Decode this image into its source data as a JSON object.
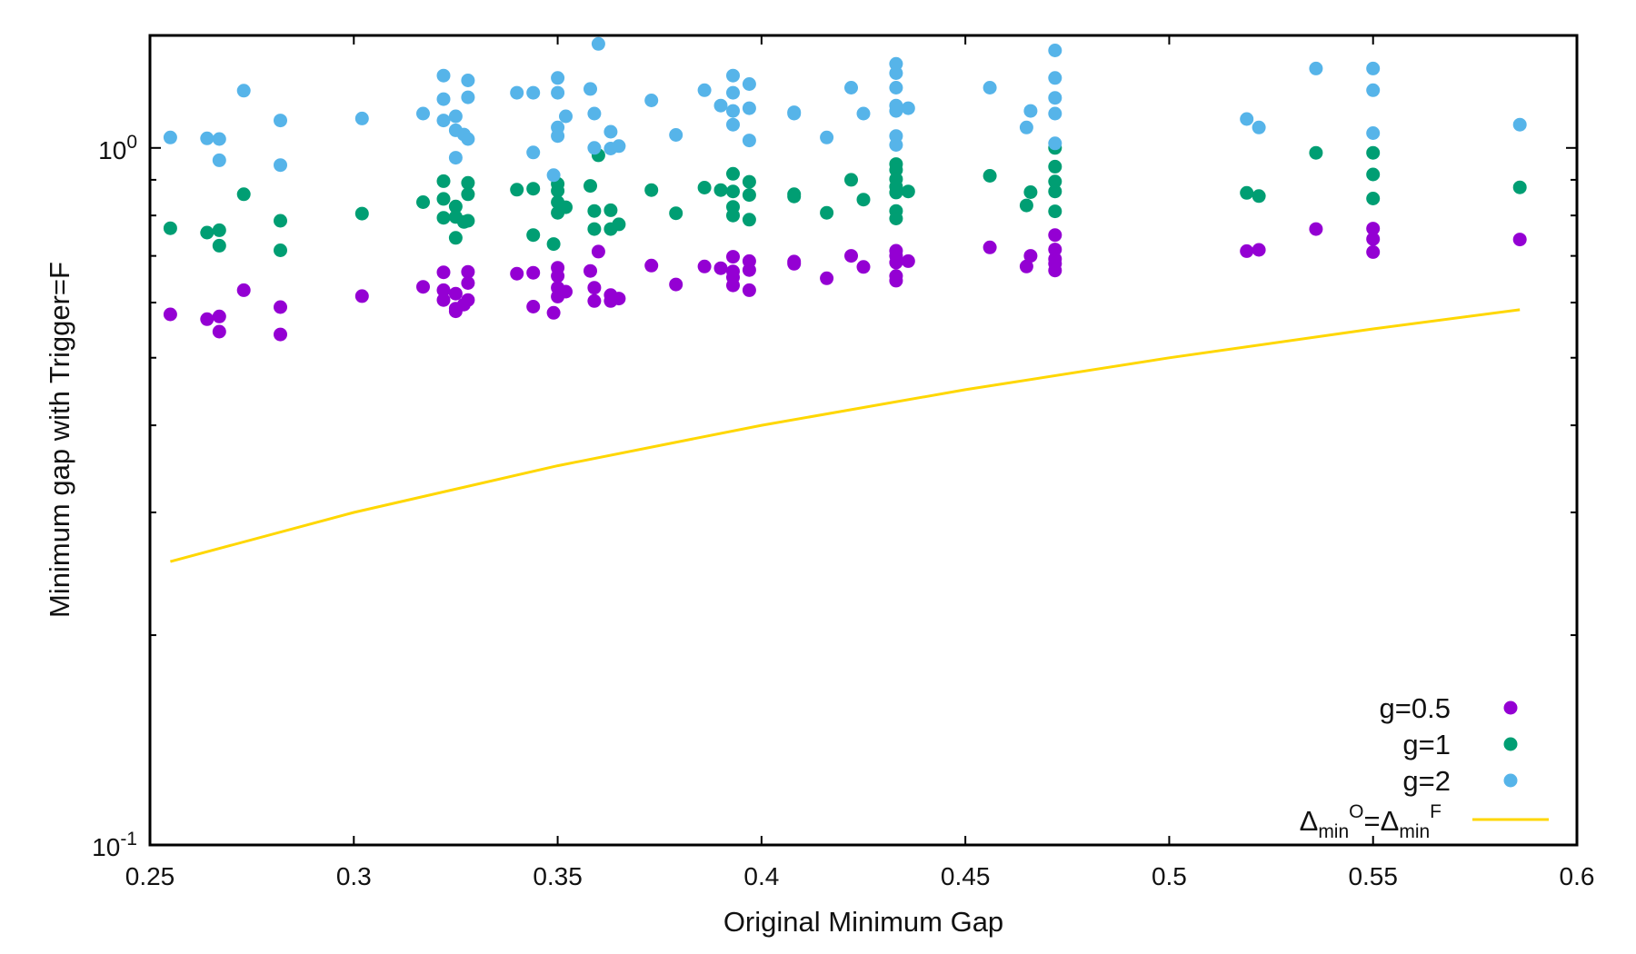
{
  "chart_data": {
    "type": "scatter",
    "xlabel": "Original Minimum Gap",
    "ylabel": "Minimum gap with Trigger=F",
    "xlim": [
      0.25,
      0.6
    ],
    "ylim": [
      0.1,
      1.45
    ],
    "y_scale": "log",
    "grid": false,
    "legend_position": "bottom-right",
    "x_ticks": [
      "0.25",
      "0.3",
      "0.35",
      "0.4",
      "0.45",
      "0.5",
      "0.55",
      "0.6"
    ],
    "y_tick_labels": {
      "top": {
        "base": "10",
        "exp": "0"
      },
      "bottom": {
        "base": "10",
        "exp": "-1"
      }
    },
    "series": [
      {
        "name": "g=0.5",
        "color": "#9400d3",
        "points": [
          [
            0.255,
            0.577
          ],
          [
            0.264,
            0.568
          ],
          [
            0.267,
            0.573
          ],
          [
            0.267,
            0.545
          ],
          [
            0.273,
            0.625
          ],
          [
            0.282,
            0.591
          ],
          [
            0.282,
            0.54
          ],
          [
            0.302,
            0.613
          ],
          [
            0.317,
            0.632
          ],
          [
            0.322,
            0.663
          ],
          [
            0.322,
            0.625
          ],
          [
            0.322,
            0.605
          ],
          [
            0.325,
            0.618
          ],
          [
            0.325,
            0.583
          ],
          [
            0.325,
            0.588
          ],
          [
            0.327,
            0.596
          ],
          [
            0.328,
            0.664
          ],
          [
            0.328,
            0.64
          ],
          [
            0.328,
            0.605
          ],
          [
            0.34,
            0.66
          ],
          [
            0.344,
            0.662
          ],
          [
            0.344,
            0.592
          ],
          [
            0.35,
            0.673
          ],
          [
            0.35,
            0.655
          ],
          [
            0.35,
            0.63
          ],
          [
            0.35,
            0.612
          ],
          [
            0.349,
            0.58
          ],
          [
            0.352,
            0.622
          ],
          [
            0.358,
            0.666
          ],
          [
            0.359,
            0.63
          ],
          [
            0.359,
            0.603
          ],
          [
            0.36,
            0.71
          ],
          [
            0.363,
            0.615
          ],
          [
            0.363,
            0.603
          ],
          [
            0.365,
            0.608
          ],
          [
            0.373,
            0.678
          ],
          [
            0.379,
            0.637
          ],
          [
            0.386,
            0.676
          ],
          [
            0.39,
            0.672
          ],
          [
            0.393,
            0.698
          ],
          [
            0.393,
            0.665
          ],
          [
            0.393,
            0.652
          ],
          [
            0.393,
            0.635
          ],
          [
            0.397,
            0.688
          ],
          [
            0.397,
            0.668
          ],
          [
            0.397,
            0.625
          ],
          [
            0.408,
            0.687
          ],
          [
            0.408,
            0.682
          ],
          [
            0.416,
            0.65
          ],
          [
            0.422,
            0.7
          ],
          [
            0.425,
            0.675
          ],
          [
            0.433,
            0.712
          ],
          [
            0.433,
            0.7
          ],
          [
            0.433,
            0.685
          ],
          [
            0.433,
            0.655
          ],
          [
            0.433,
            0.645
          ],
          [
            0.436,
            0.688
          ],
          [
            0.456,
            0.72
          ],
          [
            0.465,
            0.676
          ],
          [
            0.466,
            0.7
          ],
          [
            0.472,
            0.75
          ],
          [
            0.472,
            0.715
          ],
          [
            0.472,
            0.693
          ],
          [
            0.472,
            0.682
          ],
          [
            0.472,
            0.667
          ],
          [
            0.519,
            0.711
          ],
          [
            0.522,
            0.714
          ],
          [
            0.536,
            0.765
          ],
          [
            0.55,
            0.766
          ],
          [
            0.55,
            0.74
          ],
          [
            0.55,
            0.709
          ],
          [
            0.586,
            0.739
          ]
        ]
      },
      {
        "name": "g=1",
        "color": "#009e73",
        "points": [
          [
            0.255,
            0.767
          ],
          [
            0.264,
            0.756
          ],
          [
            0.267,
            0.762
          ],
          [
            0.267,
            0.724
          ],
          [
            0.273,
            0.858
          ],
          [
            0.282,
            0.786
          ],
          [
            0.282,
            0.713
          ],
          [
            0.302,
            0.805
          ],
          [
            0.317,
            0.836
          ],
          [
            0.322,
            0.896
          ],
          [
            0.322,
            0.845
          ],
          [
            0.322,
            0.794
          ],
          [
            0.325,
            0.824
          ],
          [
            0.325,
            0.796
          ],
          [
            0.325,
            0.743
          ],
          [
            0.327,
            0.783
          ],
          [
            0.328,
            0.891
          ],
          [
            0.328,
            0.858
          ],
          [
            0.328,
            0.786
          ],
          [
            0.34,
            0.871
          ],
          [
            0.344,
            0.874
          ],
          [
            0.344,
            0.75
          ],
          [
            0.35,
            0.888
          ],
          [
            0.35,
            0.868
          ],
          [
            0.35,
            0.836
          ],
          [
            0.35,
            0.807
          ],
          [
            0.349,
            0.728
          ],
          [
            0.352,
            0.822
          ],
          [
            0.358,
            0.882
          ],
          [
            0.359,
            0.812
          ],
          [
            0.359,
            0.765
          ],
          [
            0.36,
            0.976
          ],
          [
            0.363,
            0.814
          ],
          [
            0.363,
            0.765
          ],
          [
            0.365,
            0.777
          ],
          [
            0.373,
            0.87
          ],
          [
            0.379,
            0.806
          ],
          [
            0.386,
            0.877
          ],
          [
            0.39,
            0.87
          ],
          [
            0.393,
            0.918
          ],
          [
            0.393,
            0.866
          ],
          [
            0.393,
            0.823
          ],
          [
            0.393,
            0.8
          ],
          [
            0.397,
            0.894
          ],
          [
            0.397,
            0.856
          ],
          [
            0.397,
            0.789
          ],
          [
            0.408,
            0.858
          ],
          [
            0.408,
            0.852
          ],
          [
            0.416,
            0.807
          ],
          [
            0.422,
            0.9
          ],
          [
            0.425,
            0.843
          ],
          [
            0.433,
            0.948
          ],
          [
            0.433,
            0.93
          ],
          [
            0.433,
            0.902
          ],
          [
            0.433,
            0.88
          ],
          [
            0.433,
            0.863
          ],
          [
            0.433,
            0.812
          ],
          [
            0.433,
            0.792
          ],
          [
            0.436,
            0.866
          ],
          [
            0.456,
            0.912
          ],
          [
            0.465,
            0.827
          ],
          [
            0.466,
            0.864
          ],
          [
            0.472,
            1.0
          ],
          [
            0.472,
            0.94
          ],
          [
            0.472,
            0.895
          ],
          [
            0.472,
            0.866
          ],
          [
            0.472,
            0.811
          ],
          [
            0.519,
            0.862
          ],
          [
            0.522,
            0.853
          ],
          [
            0.536,
            0.984
          ],
          [
            0.55,
            0.984
          ],
          [
            0.55,
            0.916
          ],
          [
            0.55,
            0.846
          ],
          [
            0.586,
            0.878
          ]
        ]
      },
      {
        "name": "g=2",
        "color": "#56b4e9",
        "points": [
          [
            0.255,
            1.035
          ],
          [
            0.264,
            1.032
          ],
          [
            0.267,
            1.03
          ],
          [
            0.267,
            0.96
          ],
          [
            0.273,
            1.208
          ],
          [
            0.282,
            1.095
          ],
          [
            0.282,
            0.945
          ],
          [
            0.302,
            1.102
          ],
          [
            0.317,
            1.12
          ],
          [
            0.322,
            1.27
          ],
          [
            0.322,
            1.175
          ],
          [
            0.322,
            1.095
          ],
          [
            0.325,
            1.11
          ],
          [
            0.325,
            1.06
          ],
          [
            0.325,
            0.968
          ],
          [
            0.327,
            1.045
          ],
          [
            0.328,
            1.25
          ],
          [
            0.328,
            1.182
          ],
          [
            0.328,
            1.03
          ],
          [
            0.34,
            1.2
          ],
          [
            0.344,
            1.2
          ],
          [
            0.344,
            0.985
          ],
          [
            0.35,
            1.26
          ],
          [
            0.35,
            1.2
          ],
          [
            0.35,
            1.07
          ],
          [
            0.35,
            1.04
          ],
          [
            0.349,
            0.914
          ],
          [
            0.352,
            1.11
          ],
          [
            0.358,
            1.215
          ],
          [
            0.359,
            1.12
          ],
          [
            0.359,
            1.0
          ],
          [
            0.36,
            1.41
          ],
          [
            0.363,
            1.055
          ],
          [
            0.363,
            0.998
          ],
          [
            0.365,
            1.006
          ],
          [
            0.373,
            1.17
          ],
          [
            0.379,
            1.044
          ],
          [
            0.386,
            1.21
          ],
          [
            0.39,
            1.15
          ],
          [
            0.393,
            1.27
          ],
          [
            0.393,
            1.2
          ],
          [
            0.393,
            1.13
          ],
          [
            0.393,
            1.08
          ],
          [
            0.397,
            1.235
          ],
          [
            0.397,
            1.14
          ],
          [
            0.397,
            1.025
          ],
          [
            0.408,
            1.125
          ],
          [
            0.408,
            1.12
          ],
          [
            0.416,
            1.035
          ],
          [
            0.422,
            1.22
          ],
          [
            0.425,
            1.12
          ],
          [
            0.433,
            1.32
          ],
          [
            0.433,
            1.28
          ],
          [
            0.433,
            1.22
          ],
          [
            0.433,
            1.15
          ],
          [
            0.433,
            1.13
          ],
          [
            0.433,
            1.04
          ],
          [
            0.433,
            1.01
          ],
          [
            0.436,
            1.14
          ],
          [
            0.456,
            1.22
          ],
          [
            0.465,
            1.07
          ],
          [
            0.466,
            1.13
          ],
          [
            0.472,
            1.38
          ],
          [
            0.472,
            1.26
          ],
          [
            0.472,
            1.18
          ],
          [
            0.472,
            1.12
          ],
          [
            0.472,
            1.015
          ],
          [
            0.519,
            1.1
          ],
          [
            0.522,
            1.07
          ],
          [
            0.536,
            1.3
          ],
          [
            0.55,
            1.3
          ],
          [
            0.55,
            1.21
          ],
          [
            0.55,
            1.05
          ],
          [
            0.586,
            1.08
          ]
        ]
      },
      {
        "name": "Δ_min^O=Δ_min^F",
        "type": "line",
        "color": "#ffd700",
        "legend_parts": {
          "delta1": "Δ",
          "sub1": "min",
          "sup1": "O",
          "equals": "=",
          "delta2": "Δ",
          "sub2": "min",
          "sup2": "F"
        },
        "points": [
          [
            0.255,
            0.255
          ],
          [
            0.3,
            0.3
          ],
          [
            0.35,
            0.35
          ],
          [
            0.4,
            0.4
          ],
          [
            0.45,
            0.45
          ],
          [
            0.5,
            0.5
          ],
          [
            0.55,
            0.55
          ],
          [
            0.586,
            0.586
          ]
        ]
      }
    ]
  }
}
